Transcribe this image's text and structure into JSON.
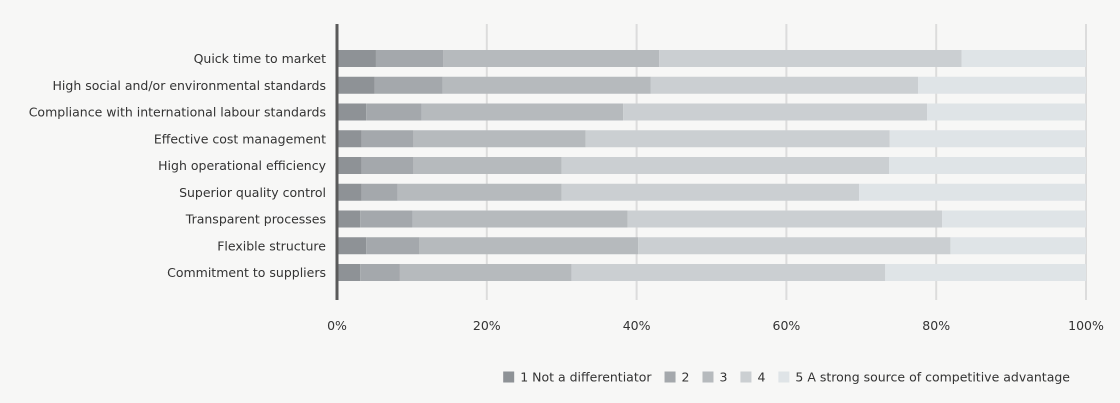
{
  "chart_data": {
    "type": "bar",
    "orientation": "horizontal",
    "stacked": true,
    "categories": [
      "Quick time to market",
      "High social and/or environmental standards",
      "Compliance with international labour standards",
      "Effective cost management",
      "High operational efficiency",
      "Superior quality control",
      "Transparent processes",
      "Flexible structure",
      "Commitment to suppliers"
    ],
    "series": [
      {
        "name": "1 Not a differentiator",
        "color": "#8e9296",
        "values": [
          5.2,
          5.0,
          3.9,
          3.3,
          3.3,
          3.3,
          3.1,
          3.9,
          3.1
        ]
      },
      {
        "name": "2",
        "color": "#a4a8ac",
        "values": [
          9.0,
          9.1,
          7.4,
          6.9,
          6.9,
          4.8,
          7.0,
          7.1,
          5.3
        ]
      },
      {
        "name": "3",
        "color": "#b6babd",
        "values": [
          28.8,
          27.8,
          26.9,
          23.0,
          19.8,
          21.9,
          28.7,
          29.2,
          22.9
        ]
      },
      {
        "name": "4",
        "color": "#cbcfd2",
        "values": [
          40.4,
          35.7,
          40.6,
          40.6,
          43.7,
          39.7,
          42.0,
          41.7,
          41.9
        ]
      },
      {
        "name": "5 A strong source of competitive advantage",
        "color": "#dfe4e7",
        "values": [
          16.6,
          22.4,
          21.2,
          26.2,
          26.3,
          30.3,
          19.2,
          18.1,
          26.8
        ]
      }
    ],
    "x_ticks": [
      "0%",
      "20%",
      "40%",
      "60%",
      "80%",
      "100%"
    ],
    "xlim": [
      0,
      100
    ],
    "grid": true,
    "legend_position": "bottom-right"
  }
}
